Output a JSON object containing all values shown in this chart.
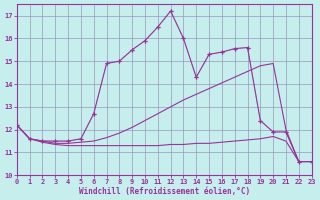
{
  "xlabel": "Windchill (Refroidissement éolien,°C)",
  "bg_color": "#c5eeed",
  "grid_color": "#9999bb",
  "line_color": "#993399",
  "xlim": [
    0,
    23
  ],
  "ylim": [
    10,
    17.5
  ],
  "yticks": [
    10,
    11,
    12,
    13,
    14,
    15,
    16,
    17
  ],
  "xticks": [
    0,
    1,
    2,
    3,
    4,
    5,
    6,
    7,
    8,
    9,
    10,
    11,
    12,
    13,
    14,
    15,
    16,
    17,
    18,
    19,
    20,
    21,
    22,
    23
  ],
  "line1_x": [
    0,
    1,
    2,
    3,
    4,
    5,
    6,
    7,
    8,
    9,
    10,
    11,
    12,
    13,
    14,
    15,
    16,
    17,
    18,
    19,
    20,
    21,
    22,
    23
  ],
  "line1_y": [
    12.2,
    11.6,
    11.5,
    11.5,
    11.5,
    11.6,
    12.7,
    14.9,
    15.0,
    15.5,
    15.9,
    16.5,
    17.2,
    16.0,
    14.3,
    15.3,
    15.4,
    15.55,
    15.6,
    12.4,
    11.9,
    11.9,
    10.6,
    10.6
  ],
  "line2_x": [
    0,
    1,
    2,
    3,
    4,
    5,
    6,
    7,
    8,
    9,
    10,
    11,
    12,
    13,
    14,
    15,
    16,
    17,
    18,
    19,
    20,
    21,
    22,
    23
  ],
  "line2_y": [
    12.2,
    11.6,
    11.5,
    11.5,
    11.5,
    11.6,
    12.7,
    14.9,
    15.0,
    15.5,
    15.9,
    16.5,
    17.2,
    16.0,
    14.3,
    15.3,
    15.4,
    15.55,
    15.6,
    12.4,
    11.9,
    11.9,
    10.6,
    10.6
  ],
  "line3_x": [
    0,
    1,
    2,
    3,
    4,
    5,
    6,
    7,
    8,
    9,
    10,
    11,
    12,
    13,
    14,
    15,
    16,
    17,
    18,
    19,
    20,
    21,
    22,
    23
  ],
  "line3_y": [
    12.2,
    11.6,
    11.5,
    11.4,
    11.4,
    11.45,
    11.5,
    11.65,
    11.85,
    12.1,
    12.4,
    12.7,
    13.0,
    13.3,
    13.55,
    13.8,
    14.05,
    14.3,
    14.55,
    14.8,
    14.9,
    12.0,
    10.6,
    10.6
  ],
  "line4_x": [
    0,
    1,
    2,
    3,
    4,
    5,
    6,
    7,
    8,
    9,
    10,
    11,
    12,
    13,
    14,
    15,
    16,
    17,
    18,
    19,
    20,
    21,
    22,
    23
  ],
  "line4_y": [
    12.2,
    11.6,
    11.45,
    11.35,
    11.3,
    11.3,
    11.3,
    11.3,
    11.3,
    11.3,
    11.3,
    11.3,
    11.35,
    11.35,
    11.4,
    11.4,
    11.45,
    11.5,
    11.55,
    11.6,
    11.7,
    11.5,
    10.6,
    10.6
  ]
}
